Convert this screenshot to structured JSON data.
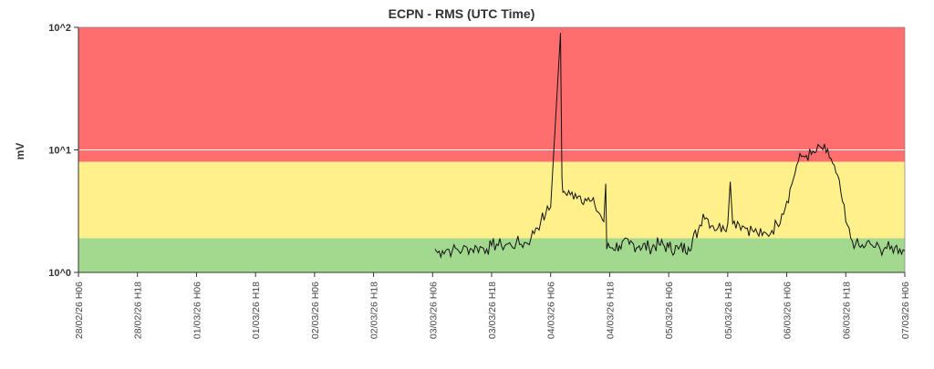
{
  "chart_data": {
    "type": "line",
    "title": "ECPN - RMS (UTC Time)",
    "ylabel": "mV",
    "xlabel": "",
    "y_scale": "log",
    "ylim": [
      1,
      100
    ],
    "ytick_labels": [
      "10^0",
      "10^1",
      "10^2"
    ],
    "ytick_values": [
      1,
      10,
      100
    ],
    "grid": false,
    "x_tick_labels": [
      "28/02/26 H06",
      "28/02/26 H18",
      "01/03/26 H06",
      "01/03/26 H18",
      "02/03/26 H06",
      "02/03/26 H18",
      "03/03/26 H06",
      "03/03/26 H18",
      "04/03/26 H06",
      "04/03/26 H18",
      "05/03/26 H06",
      "05/03/26 H18",
      "06/03/26 H06",
      "06/03/26 H18",
      "07/03/26 H06"
    ],
    "x_ticks_hours_from_first_label": [
      0,
      12,
      24,
      36,
      48,
      60,
      72,
      84,
      96,
      108,
      120,
      132,
      144,
      156,
      168
    ],
    "bands": [
      {
        "name": "green",
        "from": 1,
        "to": 1.9,
        "color": "#a3d98f"
      },
      {
        "name": "yellow",
        "from": 1.9,
        "to": 8,
        "color": "#fff08c"
      },
      {
        "name": "red",
        "from": 8,
        "to": 100,
        "color": "#ff6e6e"
      }
    ],
    "reference_line": {
      "value": 10,
      "color": "#ffffff"
    },
    "series": [
      {
        "color": "#111111",
        "points_hours_vs_mV": [
          [
            72.5,
            1.55
          ],
          [
            73.0,
            1.45
          ],
          [
            74.0,
            1.5
          ],
          [
            75.0,
            1.55
          ],
          [
            76.0,
            1.5
          ],
          [
            77.0,
            1.55
          ],
          [
            78.0,
            1.5
          ],
          [
            79.0,
            1.6
          ],
          [
            80.0,
            1.55
          ],
          [
            81.0,
            1.6
          ],
          [
            82.0,
            1.6
          ],
          [
            83.0,
            1.55
          ],
          [
            84.0,
            1.65
          ],
          [
            85.0,
            1.7
          ],
          [
            86.0,
            1.65
          ],
          [
            87.0,
            1.7
          ],
          [
            88.0,
            1.65
          ],
          [
            89.0,
            1.75
          ],
          [
            90.0,
            1.7
          ],
          [
            91.0,
            1.75
          ],
          [
            92.0,
            1.9
          ],
          [
            93.0,
            2.3
          ],
          [
            94.0,
            2.6
          ],
          [
            95.0,
            3.0
          ],
          [
            96.0,
            3.4
          ],
          [
            98.0,
            90
          ],
          [
            98.3,
            6.0
          ],
          [
            98.5,
            4.5
          ],
          [
            99.0,
            4.4
          ],
          [
            100.0,
            4.3
          ],
          [
            101.0,
            4.4
          ],
          [
            102.0,
            4.2
          ],
          [
            103.0,
            4.0
          ],
          [
            104.0,
            3.8
          ],
          [
            105.0,
            3.5
          ],
          [
            106.0,
            3.0
          ],
          [
            106.8,
            2.6
          ],
          [
            107.2,
            5.3
          ],
          [
            107.4,
            1.55
          ],
          [
            108.0,
            1.6
          ],
          [
            110.0,
            1.65
          ],
          [
            112.0,
            1.7
          ],
          [
            114.0,
            1.65
          ],
          [
            116.0,
            1.6
          ],
          [
            118.0,
            1.7
          ],
          [
            120.0,
            1.6
          ],
          [
            122.0,
            1.55
          ],
          [
            124.0,
            1.6
          ],
          [
            126.0,
            2.2
          ],
          [
            127.0,
            3.0
          ],
          [
            128.0,
            2.7
          ],
          [
            129.0,
            2.4
          ],
          [
            130.0,
            2.3
          ],
          [
            131.0,
            2.4
          ],
          [
            132.0,
            2.5
          ],
          [
            132.5,
            5.5
          ],
          [
            133.0,
            2.5
          ],
          [
            134.0,
            2.6
          ],
          [
            135.0,
            2.4
          ],
          [
            136.0,
            2.3
          ],
          [
            137.0,
            2.2
          ],
          [
            138.0,
            2.1
          ],
          [
            139.0,
            2.0
          ],
          [
            140.0,
            2.05
          ],
          [
            141.0,
            2.2
          ],
          [
            142.0,
            2.5
          ],
          [
            143.0,
            3.0
          ],
          [
            144.0,
            3.8
          ],
          [
            145.0,
            5.2
          ],
          [
            146.0,
            7.5
          ],
          [
            147.0,
            8.8
          ],
          [
            148.0,
            9.0
          ],
          [
            149.0,
            9.2
          ],
          [
            150.0,
            9.6
          ],
          [
            151.0,
            10.5
          ],
          [
            152.0,
            9.5
          ],
          [
            153.0,
            8.5
          ],
          [
            154.0,
            6.5
          ],
          [
            155.0,
            4.5
          ],
          [
            156.0,
            2.6
          ],
          [
            157.0,
            1.9
          ],
          [
            158.0,
            1.7
          ],
          [
            159.0,
            1.6
          ],
          [
            160.0,
            1.65
          ],
          [
            161.0,
            1.7
          ],
          [
            162.0,
            1.6
          ],
          [
            163.0,
            1.55
          ],
          [
            164.0,
            1.6
          ],
          [
            165.0,
            1.55
          ],
          [
            166.0,
            1.6
          ],
          [
            167.0,
            1.55
          ],
          [
            168.0,
            1.5
          ]
        ]
      }
    ]
  }
}
